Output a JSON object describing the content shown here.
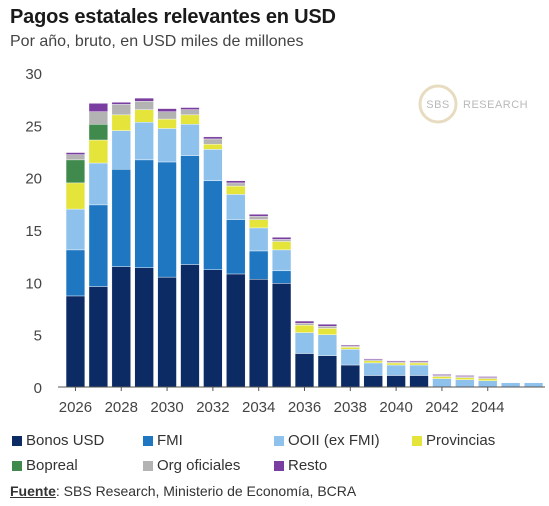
{
  "title": "Pagos estatales relevantes en USD",
  "subtitle": "Por año, bruto, en USD miles de millones",
  "source": {
    "label": "Fuente",
    "text": ": SBS Research, Ministerio de Economía, BCRA"
  },
  "watermark": {
    "logo": "SBS",
    "text": "RESEARCH"
  },
  "colors": {
    "Bonos USD": "#0c2a63",
    "FMI": "#1f77c2",
    "OOII (ex FMI)": "#8ec1ec",
    "Provincias": "#e4e43a",
    "Bopreal": "#3f8a4c",
    "Org oficiales": "#b3b3b3",
    "Resto": "#7a3ea0"
  },
  "chart_data": {
    "type": "bar",
    "stacked": true,
    "title": "Pagos estatales relevantes en USD",
    "subtitle": "Por año, bruto, en USD miles de millones",
    "ylim": [
      0,
      30
    ],
    "yticks": [
      0,
      5,
      10,
      15,
      20,
      25,
      30
    ],
    "xtick_labels": [
      "2026",
      "2028",
      "2030",
      "2032",
      "2034",
      "2036",
      "2038",
      "2040",
      "2042",
      "2044"
    ],
    "categories": [
      "2026",
      "2027",
      "2028",
      "2029",
      "2030",
      "2031",
      "2032",
      "2033",
      "2034",
      "2035",
      "2036",
      "2037",
      "2038",
      "2039",
      "2040",
      "2041",
      "2042",
      "2043",
      "2044",
      "2045",
      "2046"
    ],
    "grid": false,
    "legend_position": "bottom",
    "series": [
      {
        "name": "Bonos USD",
        "values": [
          8.7,
          9.6,
          11.5,
          11.4,
          10.5,
          11.7,
          11.2,
          10.8,
          10.3,
          9.9,
          3.2,
          3.0,
          2.1,
          1.1,
          1.1,
          1.1,
          0.0,
          0.0,
          0.0,
          0.0,
          0.0
        ]
      },
      {
        "name": "FMI",
        "values": [
          4.4,
          7.8,
          9.3,
          10.3,
          11.0,
          10.4,
          8.5,
          5.2,
          2.7,
          1.2,
          0.0,
          0.0,
          0.0,
          0.0,
          0.0,
          0.0,
          0.0,
          0.0,
          0.0,
          0.0,
          0.0
        ]
      },
      {
        "name": "OOII (ex FMI)",
        "values": [
          3.9,
          4.0,
          3.7,
          3.6,
          3.2,
          3.0,
          3.0,
          2.4,
          2.2,
          2.0,
          2.0,
          2.0,
          1.5,
          1.2,
          1.0,
          1.0,
          0.8,
          0.7,
          0.6,
          0.4,
          0.4
        ]
      },
      {
        "name": "Provincias",
        "values": [
          2.5,
          2.2,
          1.5,
          1.2,
          0.9,
          0.9,
          0.5,
          0.8,
          0.8,
          0.8,
          0.7,
          0.6,
          0.2,
          0.2,
          0.2,
          0.2,
          0.2,
          0.2,
          0.2,
          0.0,
          0.0
        ]
      },
      {
        "name": "Bopreal",
        "values": [
          2.2,
          1.5,
          0.0,
          0.0,
          0.0,
          0.0,
          0.0,
          0.0,
          0.0,
          0.0,
          0.0,
          0.0,
          0.0,
          0.0,
          0.0,
          0.0,
          0.0,
          0.0,
          0.0,
          0.0,
          0.0
        ]
      },
      {
        "name": "Org oficiales",
        "values": [
          0.5,
          1.2,
          1.0,
          0.8,
          0.7,
          0.5,
          0.5,
          0.3,
          0.3,
          0.2,
          0.2,
          0.2,
          0.1,
          0.1,
          0.1,
          0.1,
          0.1,
          0.1,
          0.1,
          0.0,
          0.0
        ]
      },
      {
        "name": "Resto",
        "values": [
          0.2,
          0.8,
          0.2,
          0.3,
          0.3,
          0.2,
          0.2,
          0.2,
          0.2,
          0.2,
          0.2,
          0.2,
          0.1,
          0.1,
          0.1,
          0.1,
          0.1,
          0.1,
          0.1,
          0.0,
          0.0
        ]
      }
    ]
  }
}
